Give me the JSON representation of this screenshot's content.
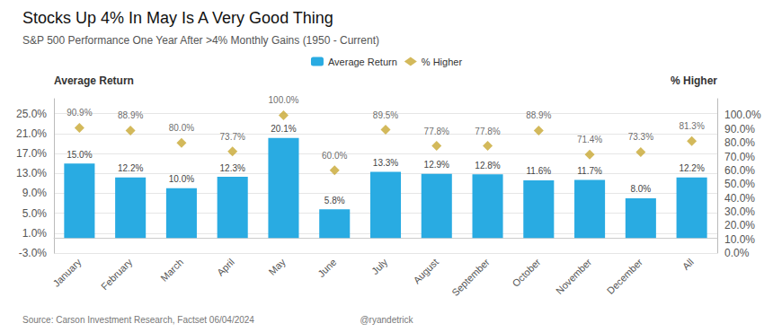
{
  "chart_data": {
    "type": "bar",
    "title": "Stocks Up 4% In May Is A Very Good Thing",
    "subtitle": "S&P 500 Performance One Year After >4% Monthly Gains (1950 - Current)",
    "ylabel": "Average Return",
    "y2label": "% Higher",
    "categories": [
      "January",
      "February",
      "March",
      "April",
      "May",
      "June",
      "July",
      "August",
      "September",
      "October",
      "November",
      "December",
      "All"
    ],
    "series": [
      {
        "name": "Average Return",
        "type": "bar",
        "color": "#29abe2",
        "values": [
          15.0,
          12.2,
          10.0,
          12.3,
          20.1,
          5.8,
          13.3,
          12.9,
          12.8,
          11.6,
          11.7,
          8.0,
          12.2
        ],
        "value_labels": [
          "15.0%",
          "12.2%",
          "10.0%",
          "12.3%",
          "20.1%",
          "5.8%",
          "13.3%",
          "12.9%",
          "12.8%",
          "11.6%",
          "11.7%",
          "8.0%",
          "12.2%"
        ]
      },
      {
        "name": "% Higher",
        "type": "scatter",
        "marker": "diamond",
        "color": "#c8a832",
        "axis": "y2",
        "values": [
          90.9,
          88.9,
          80.0,
          73.7,
          100.0,
          60.0,
          89.5,
          77.8,
          77.8,
          88.9,
          71.4,
          73.3,
          81.3
        ],
        "value_labels": [
          "90.9%",
          "88.9%",
          "80.0%",
          "73.7%",
          "100.0%",
          "60.0%",
          "89.5%",
          "77.8%",
          "77.8%",
          "88.9%",
          "71.4%",
          "73.3%",
          "81.3%"
        ]
      }
    ],
    "ylim": [
      -3.0,
      28.0
    ],
    "yticks": [
      {
        "value": -3.0,
        "label": "-3.0%"
      },
      {
        "value": 1.0,
        "label": "1.0%"
      },
      {
        "value": 5.0,
        "label": "5.0%"
      },
      {
        "value": 9.0,
        "label": "9.0%"
      },
      {
        "value": 13.0,
        "label": "13.0%"
      },
      {
        "value": 17.0,
        "label": "17.0%"
      },
      {
        "value": 21.0,
        "label": "21.0%"
      },
      {
        "value": 25.0,
        "label": "25.0%"
      }
    ],
    "y2lim": [
      0.0,
      112.0
    ],
    "y2ticks": [
      {
        "value": 0.0,
        "label": "0.0%"
      },
      {
        "value": 10.0,
        "label": "10.0%"
      },
      {
        "value": 20.0,
        "label": "20.0%"
      },
      {
        "value": 30.0,
        "label": "30.0%"
      },
      {
        "value": 40.0,
        "label": "40.0%"
      },
      {
        "value": 50.0,
        "label": "50.0%"
      },
      {
        "value": 60.0,
        "label": "60.0%"
      },
      {
        "value": 70.0,
        "label": "70.0%"
      },
      {
        "value": 80.0,
        "label": "80.0%"
      },
      {
        "value": 90.0,
        "label": "90.0%"
      },
      {
        "value": 100.0,
        "label": "100.0%"
      }
    ],
    "grid": true,
    "data_labels": true,
    "legend": "top",
    "annotations": [
      "Source: Carson Investment Research, Factset 06/04/2024",
      "@ryandetrick"
    ]
  }
}
